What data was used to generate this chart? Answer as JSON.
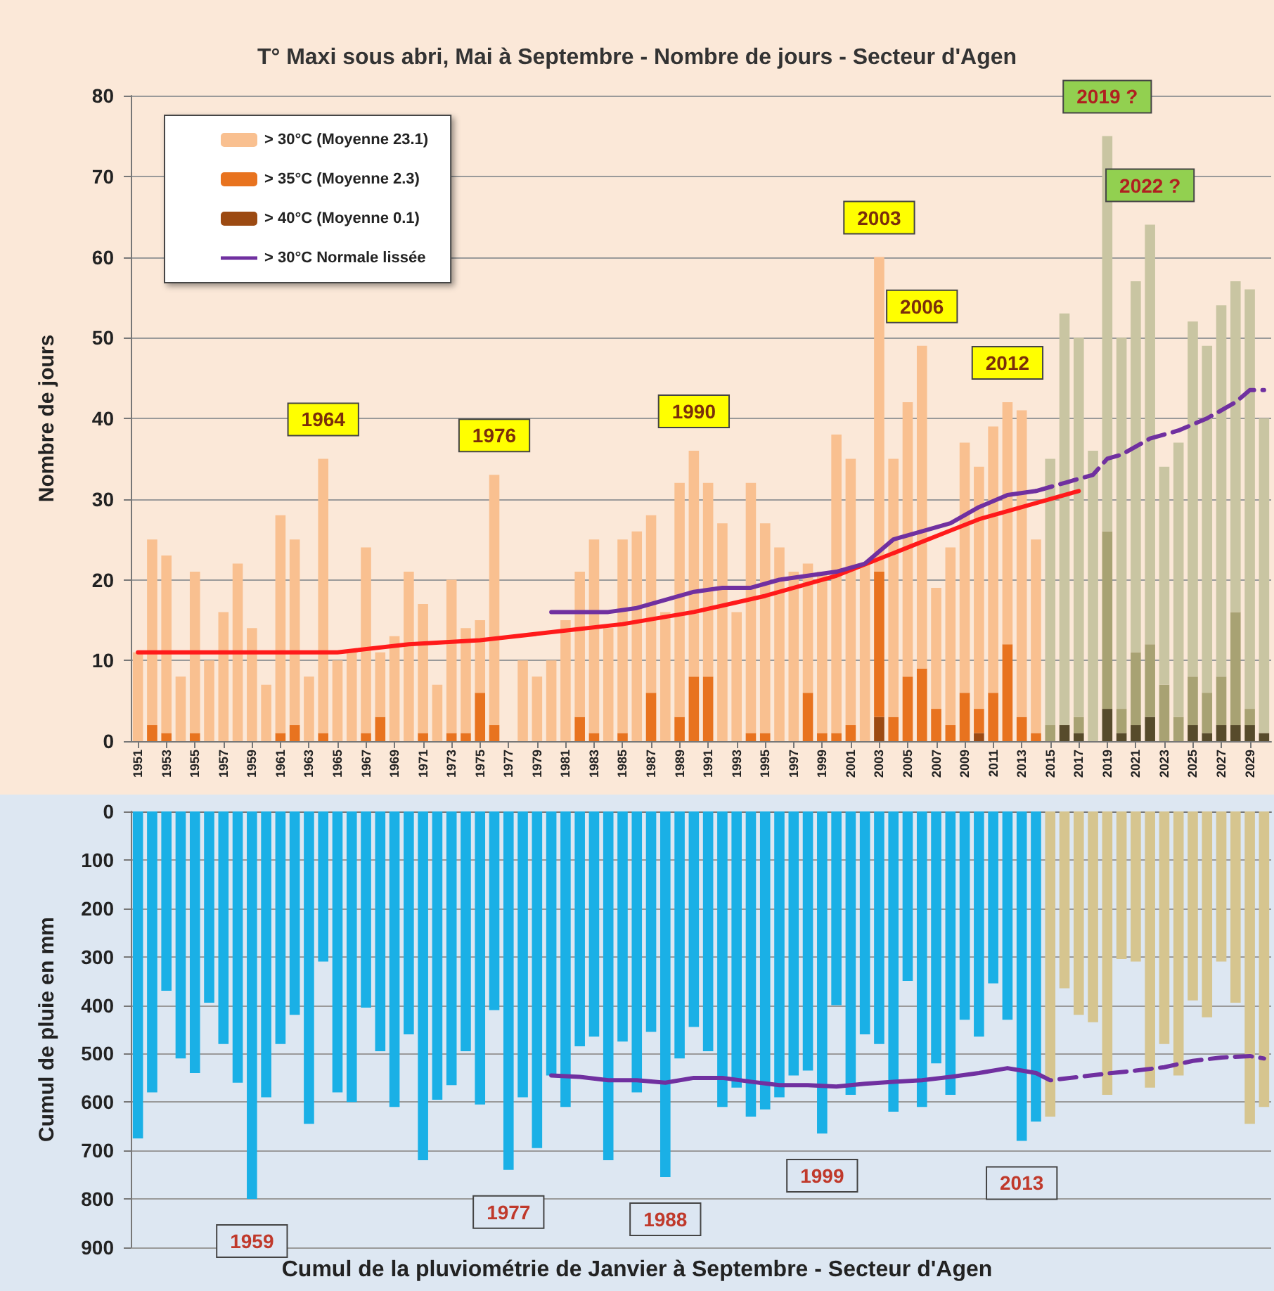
{
  "chart_data": [
    {
      "type": "bar",
      "title": "T° Maxi sous abri, Mai à Septembre - Nombre de jours - Secteur d'Agen",
      "ylabel": "Nombre de jours",
      "stacked": true,
      "grid": "y",
      "legend": "top left",
      "x": [
        1951,
        1952,
        1953,
        1954,
        1955,
        1956,
        1957,
        1958,
        1959,
        1960,
        1961,
        1962,
        1963,
        1964,
        1965,
        1966,
        1967,
        1968,
        1969,
        1970,
        1971,
        1972,
        1973,
        1974,
        1975,
        1976,
        1977,
        1978,
        1979,
        1980,
        1981,
        1982,
        1983,
        1984,
        1985,
        1986,
        1987,
        1988,
        1989,
        1990,
        1991,
        1992,
        1993,
        1994,
        1995,
        1996,
        1997,
        1998,
        1999,
        2000,
        2001,
        2002,
        2003,
        2004,
        2005,
        2006,
        2007,
        2008,
        2009,
        2010,
        2011,
        2012,
        2013,
        2014,
        2015,
        2016,
        2017,
        2018,
        2019,
        2020,
        2021,
        2022,
        2023,
        2024,
        2025,
        2026,
        2027,
        2028,
        2029,
        2030
      ],
      "xlim": [
        1950.5,
        2030.5
      ],
      "xticks": [
        1951,
        1953,
        1955,
        1957,
        1959,
        1961,
        1963,
        1965,
        1967,
        1969,
        1971,
        1973,
        1975,
        1977,
        1979,
        1981,
        1983,
        1985,
        1987,
        1989,
        1991,
        1993,
        1995,
        1997,
        1999,
        2001,
        2003,
        2005,
        2007,
        2009,
        2011,
        2013,
        2015,
        2017,
        2019,
        2021,
        2023,
        2025,
        2027,
        2029
      ],
      "ylim": [
        0,
        80
      ],
      "yticks": [
        0,
        10,
        20,
        30,
        40,
        50,
        60,
        70,
        80
      ],
      "series": [
        {
          "name": "> 40°C (Moyenne 0.1)",
          "color": "#9c4a12",
          "values": [
            0,
            0,
            0,
            0,
            0,
            0,
            0,
            0,
            0,
            0,
            0,
            0,
            0,
            0,
            0,
            0,
            0,
            0,
            0,
            0,
            0,
            0,
            0,
            0,
            0,
            0,
            0,
            0,
            0,
            0,
            0,
            0,
            0,
            0,
            0,
            0,
            0,
            0,
            0,
            0,
            0,
            0,
            0,
            0,
            0,
            0,
            0,
            0,
            0,
            0,
            0,
            0,
            3,
            0,
            0,
            0,
            0,
            0,
            0,
            1,
            0,
            0,
            0,
            0,
            null,
            null,
            null,
            null,
            null,
            null,
            null,
            null,
            null,
            null,
            null,
            null,
            null,
            null,
            null,
            null
          ]
        },
        {
          "name": "> 35°C (Moyenne 2.3)",
          "color": "#e8731f",
          "values": [
            0,
            2,
            1,
            0,
            1,
            0,
            0,
            0,
            0,
            0,
            1,
            2,
            0,
            1,
            0,
            0,
            1,
            3,
            0,
            0,
            1,
            0,
            1,
            1,
            6,
            2,
            0,
            0,
            0,
            0,
            0,
            3,
            1,
            0,
            1,
            0,
            6,
            0,
            3,
            8,
            8,
            0,
            0,
            1,
            1,
            0,
            0,
            6,
            1,
            1,
            2,
            0,
            18,
            3,
            8,
            9,
            4,
            2,
            6,
            3,
            6,
            12,
            3,
            1,
            null,
            null,
            null,
            null,
            null,
            null,
            null,
            null,
            null,
            null,
            null,
            null,
            null,
            null,
            null,
            null
          ]
        },
        {
          "name": "> 30°C (Moyenne 23.1)",
          "color": "#f9c090",
          "values": [
            11,
            23,
            22,
            8,
            20,
            10,
            16,
            22,
            14,
            7,
            27,
            23,
            8,
            34,
            10,
            11,
            23,
            8,
            13,
            21,
            16,
            7,
            19,
            13,
            9,
            31,
            0,
            10,
            8,
            10,
            15,
            18,
            24,
            14,
            24,
            26,
            22,
            16,
            29,
            28,
            24,
            27,
            16,
            31,
            26,
            24,
            21,
            16,
            20,
            37,
            33,
            22,
            39,
            32,
            34,
            40,
            15,
            22,
            31,
            30,
            33,
            30,
            38,
            24,
            null,
            null,
            null,
            null,
            null,
            null,
            null,
            null,
            null,
            null,
            null,
            null,
            null,
            null,
            null,
            null
          ]
        },
        {
          "color": "#574b2b",
          "values": [
            null,
            null,
            null,
            null,
            null,
            null,
            null,
            null,
            null,
            null,
            null,
            null,
            null,
            null,
            null,
            null,
            null,
            null,
            null,
            null,
            null,
            null,
            null,
            null,
            null,
            null,
            null,
            null,
            null,
            null,
            null,
            null,
            null,
            null,
            null,
            null,
            null,
            null,
            null,
            null,
            null,
            null,
            null,
            null,
            null,
            null,
            null,
            null,
            null,
            null,
            null,
            null,
            null,
            null,
            null,
            null,
            null,
            null,
            null,
            null,
            null,
            null,
            null,
            null,
            0,
            2,
            1,
            0,
            4,
            1,
            2,
            3,
            0,
            0,
            2,
            1,
            2,
            2,
            2,
            1
          ]
        },
        {
          "color": "#a8a273",
          "values": [
            null,
            null,
            null,
            null,
            null,
            null,
            null,
            null,
            null,
            null,
            null,
            null,
            null,
            null,
            null,
            null,
            null,
            null,
            null,
            null,
            null,
            null,
            null,
            null,
            null,
            null,
            null,
            null,
            null,
            null,
            null,
            null,
            null,
            null,
            null,
            null,
            null,
            null,
            null,
            null,
            null,
            null,
            null,
            null,
            null,
            null,
            null,
            null,
            null,
            null,
            null,
            null,
            null,
            null,
            null,
            null,
            null,
            null,
            null,
            null,
            null,
            null,
            null,
            null,
            2,
            0,
            2,
            0,
            22,
            3,
            9,
            9,
            7,
            3,
            6,
            5,
            6,
            14,
            2,
            0
          ]
        },
        {
          "color": "#c9c5a2",
          "values": [
            null,
            null,
            null,
            null,
            null,
            null,
            null,
            null,
            null,
            null,
            null,
            null,
            null,
            null,
            null,
            null,
            null,
            null,
            null,
            null,
            null,
            null,
            null,
            null,
            null,
            null,
            null,
            null,
            null,
            null,
            null,
            null,
            null,
            null,
            null,
            null,
            null,
            null,
            null,
            null,
            null,
            null,
            null,
            null,
            null,
            null,
            null,
            null,
            null,
            null,
            null,
            null,
            null,
            null,
            null,
            null,
            null,
            null,
            null,
            null,
            null,
            null,
            null,
            null,
            33,
            51,
            47,
            36,
            49,
            46,
            46,
            52,
            27,
            34,
            44,
            43,
            46,
            41,
            52,
            39
          ]
        },
        {
          "type": "line",
          "line_style": "solid",
          "color": "#ff1a1a",
          "x": [
            1951,
            1955,
            1960,
            1965,
            1970,
            1975,
            1980,
            1985,
            1990,
            1995,
            2000,
            2005,
            2010,
            2017
          ],
          "values": [
            11,
            11,
            11,
            11,
            12,
            12.5,
            13.5,
            14.5,
            16,
            18,
            20.5,
            24,
            27.5,
            31
          ]
        },
        {
          "name": "> 30°C Normale lissée",
          "type": "line",
          "line_style": "solid",
          "color": "#7030a0",
          "x": [
            1980,
            1982,
            1984,
            1986,
            1988,
            1990,
            1992,
            1994,
            1996,
            1998,
            2000,
            2002,
            2003,
            2004,
            2006,
            2008,
            2010,
            2012,
            2014
          ],
          "values": [
            16,
            16,
            16,
            16.5,
            17.5,
            18.5,
            19,
            19,
            20,
            20.5,
            21,
            22,
            23.5,
            25,
            26,
            27,
            29,
            30.5,
            31
          ]
        },
        {
          "type": "line",
          "line_style": "dashed",
          "color": "#7030a0",
          "x": [
            2014,
            2016,
            2018,
            2019,
            2020,
            2022,
            2024,
            2026,
            2028,
            2029,
            2030
          ],
          "values": [
            31,
            32,
            33,
            35,
            35.5,
            37.5,
            38.5,
            40,
            42,
            43.5,
            43.5
          ]
        }
      ],
      "annotations": [
        {
          "text": "1964",
          "x": 1964,
          "y": 35
        },
        {
          "text": "1976",
          "x": 1976,
          "y": 33
        },
        {
          "text": "1990",
          "x": 1990,
          "y": 36
        },
        {
          "text": "2003",
          "x": 2003,
          "y": 60
        },
        {
          "text": "2006",
          "x": 2006,
          "y": 49
        },
        {
          "text": "2012",
          "x": 2012,
          "y": 42
        },
        {
          "text": "2019 ?",
          "x": 2019,
          "y": 75
        },
        {
          "text": "2022 ?",
          "x": 2022,
          "y": 64
        }
      ]
    },
    {
      "type": "bar",
      "xlabel": "Cumul de la pluviométrie de Janvier à Septembre - Secteur d'Agen",
      "ylabel": "Cumul de pluie en mm",
      "grid": "y",
      "tick_labels": "y",
      "x": [
        1951,
        1952,
        1953,
        1954,
        1955,
        1956,
        1957,
        1958,
        1959,
        1960,
        1961,
        1962,
        1963,
        1964,
        1965,
        1966,
        1967,
        1968,
        1969,
        1970,
        1971,
        1972,
        1973,
        1974,
        1975,
        1976,
        1977,
        1978,
        1979,
        1980,
        1981,
        1982,
        1983,
        1984,
        1985,
        1986,
        1987,
        1988,
        1989,
        1990,
        1991,
        1992,
        1993,
        1994,
        1995,
        1996,
        1997,
        1998,
        1999,
        2000,
        2001,
        2002,
        2003,
        2004,
        2005,
        2006,
        2007,
        2008,
        2009,
        2010,
        2011,
        2012,
        2013,
        2014,
        2015,
        2016,
        2017,
        2018,
        2019,
        2020,
        2021,
        2022,
        2023,
        2024,
        2025,
        2026,
        2027,
        2028,
        2029,
        2030
      ],
      "xlim": [
        1950.5,
        2030.5
      ],
      "xticks": [
        1951,
        1953,
        1955,
        1957,
        1959,
        1961,
        1963,
        1965,
        1967,
        1969,
        1971,
        1973,
        1975,
        1977,
        1979,
        1981,
        1983,
        1985,
        1987,
        1989,
        1991,
        1993,
        1995,
        1997,
        1999,
        2001,
        2003,
        2005,
        2007,
        2009,
        2011,
        2013,
        2015,
        2017,
        2019,
        2021,
        2023,
        2025,
        2027,
        2029
      ],
      "ylim": [
        900,
        0
      ],
      "yticks": [
        0,
        100,
        200,
        300,
        400,
        500,
        600,
        700,
        800,
        900
      ],
      "series": [
        {
          "color": "#1ab0e6",
          "values": [
            675,
            580,
            370,
            510,
            540,
            395,
            480,
            560,
            800,
            590,
            480,
            420,
            645,
            310,
            580,
            600,
            405,
            495,
            610,
            460,
            720,
            595,
            565,
            495,
            605,
            410,
            740,
            590,
            695,
            545,
            610,
            485,
            465,
            720,
            475,
            580,
            455,
            755,
            510,
            445,
            495,
            610,
            570,
            630,
            615,
            590,
            545,
            535,
            665,
            400,
            585,
            460,
            480,
            620,
            350,
            610,
            520,
            585,
            430,
            465,
            355,
            430,
            680,
            640,
            null,
            null,
            null,
            null,
            null,
            null,
            null,
            null,
            null,
            null,
            null,
            null,
            null,
            null,
            null,
            null
          ]
        },
        {
          "color": "#d6c58f",
          "values": [
            null,
            null,
            null,
            null,
            null,
            null,
            null,
            null,
            null,
            null,
            null,
            null,
            null,
            null,
            null,
            null,
            null,
            null,
            null,
            null,
            null,
            null,
            null,
            null,
            null,
            null,
            null,
            null,
            null,
            null,
            null,
            null,
            null,
            null,
            null,
            null,
            null,
            null,
            null,
            null,
            null,
            null,
            null,
            null,
            null,
            null,
            null,
            null,
            null,
            null,
            null,
            null,
            null,
            null,
            null,
            null,
            null,
            null,
            null,
            null,
            null,
            null,
            null,
            null,
            630,
            365,
            420,
            435,
            585,
            305,
            310,
            570,
            480,
            545,
            390,
            425,
            310,
            395,
            645,
            610
          ]
        },
        {
          "type": "line",
          "line_style": "solid",
          "color": "#7030a0",
          "x": [
            1980,
            1982,
            1984,
            1986,
            1988,
            1990,
            1992,
            1994,
            1996,
            1998,
            2000,
            2002,
            2004,
            2006,
            2008,
            2010,
            2012,
            2013,
            2014
          ],
          "values": [
            545,
            548,
            555,
            555,
            560,
            550,
            550,
            558,
            565,
            565,
            568,
            562,
            558,
            555,
            548,
            540,
            530,
            535,
            540
          ]
        },
        {
          "type": "line",
          "line_style": "dashed",
          "color": "#7030a0",
          "x": [
            2014,
            2015,
            2017,
            2019,
            2021,
            2023,
            2025,
            2027,
            2029,
            2030
          ],
          "values": [
            540,
            555,
            548,
            541,
            535,
            528,
            515,
            508,
            505,
            510
          ]
        }
      ],
      "annotations": [
        {
          "text": "1959",
          "x": 1959,
          "y": 800
        },
        {
          "text": "1977",
          "x": 1977,
          "y": 740
        },
        {
          "text": "1988",
          "x": 1988,
          "y": 755
        },
        {
          "text": "1999",
          "x": 1999,
          "y": 665
        },
        {
          "text": "2013",
          "x": 2013,
          "y": 680
        }
      ]
    }
  ]
}
